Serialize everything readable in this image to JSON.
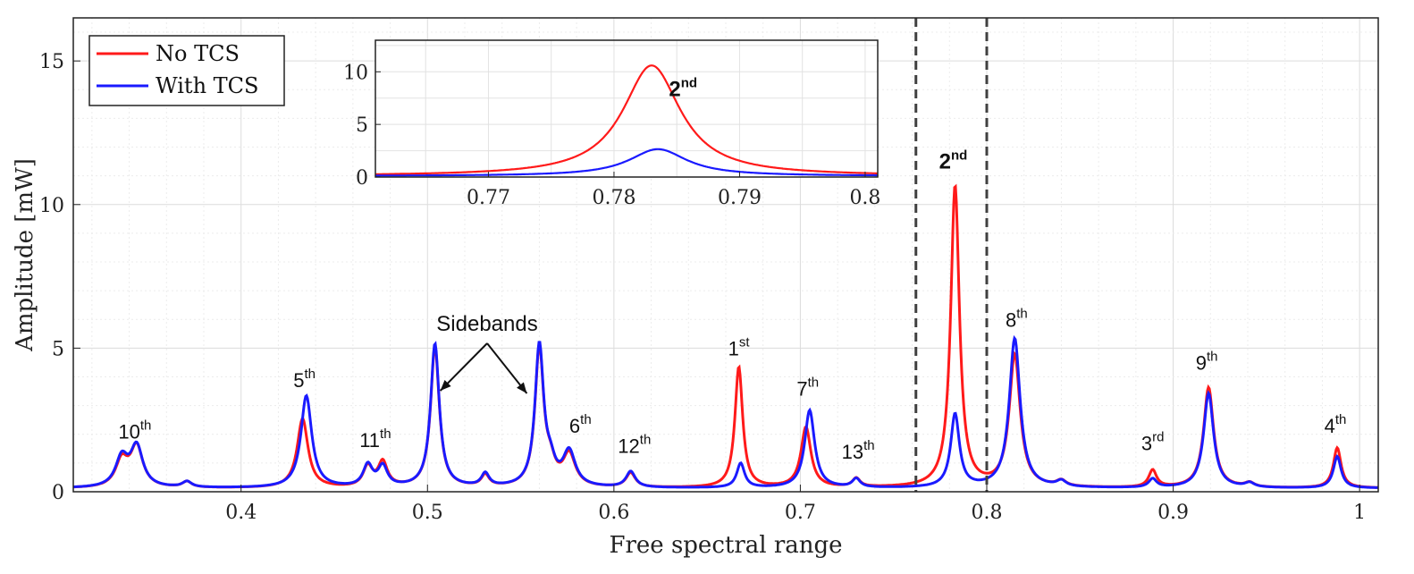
{
  "chart_data": {
    "type": "line",
    "xlabel": "Free spectral range",
    "ylabel": "Amplitude [mW]",
    "xlim": [
      0.31,
      1.01
    ],
    "ylim": [
      0,
      16.5
    ],
    "xticks": [
      0.4,
      0.5,
      0.6,
      0.7,
      0.8,
      0.9,
      1
    ],
    "xtick_labels": [
      "0.4",
      "0.5",
      "0.6",
      "0.7",
      "0.8",
      "0.9",
      "1"
    ],
    "yticks": [
      0,
      5,
      10,
      15
    ],
    "ytick_labels": [
      "0",
      "5",
      "10",
      "15"
    ],
    "grid": true,
    "legend_position": "top-left",
    "series": [
      {
        "name": "No TCS",
        "color": "#ff1a1a",
        "peaks": [
          {
            "x": 0.336,
            "amp": 0.9,
            "w": 0.004
          },
          {
            "x": 0.344,
            "amp": 1.4,
            "w": 0.004
          },
          {
            "x": 0.371,
            "amp": 0.2,
            "w": 0.003
          },
          {
            "x": 0.433,
            "amp": 2.4,
            "w": 0.0035
          },
          {
            "x": 0.468,
            "amp": 0.7,
            "w": 0.003
          },
          {
            "x": 0.476,
            "amp": 0.85,
            "w": 0.003
          },
          {
            "x": 0.504,
            "amp": 4.9,
            "w": 0.0028
          },
          {
            "x": 0.531,
            "amp": 0.4,
            "w": 0.0025
          },
          {
            "x": 0.56,
            "amp": 4.8,
            "w": 0.0028
          },
          {
            "x": 0.566,
            "amp": 0.6,
            "w": 0.003
          },
          {
            "x": 0.576,
            "amp": 1.1,
            "w": 0.004
          },
          {
            "x": 0.609,
            "amp": 0.5,
            "w": 0.003
          },
          {
            "x": 0.667,
            "amp": 4.2,
            "w": 0.0025
          },
          {
            "x": 0.703,
            "amp": 2.1,
            "w": 0.0032
          },
          {
            "x": 0.73,
            "amp": 0.3,
            "w": 0.0025
          },
          {
            "x": 0.783,
            "amp": 10.5,
            "w": 0.0028
          },
          {
            "x": 0.815,
            "amp": 4.6,
            "w": 0.0035
          },
          {
            "x": 0.84,
            "amp": 0.2,
            "w": 0.003
          },
          {
            "x": 0.889,
            "amp": 0.6,
            "w": 0.0025
          },
          {
            "x": 0.919,
            "amp": 3.5,
            "w": 0.0032
          },
          {
            "x": 0.941,
            "amp": 0.15,
            "w": 0.003
          },
          {
            "x": 0.988,
            "amp": 1.4,
            "w": 0.0025
          }
        ]
      },
      {
        "name": "With TCS",
        "color": "#1a1aff",
        "peaks": [
          {
            "x": 0.336,
            "amp": 1.0,
            "w": 0.004
          },
          {
            "x": 0.344,
            "amp": 1.4,
            "w": 0.004
          },
          {
            "x": 0.371,
            "amp": 0.2,
            "w": 0.003
          },
          {
            "x": 0.435,
            "amp": 3.2,
            "w": 0.0035
          },
          {
            "x": 0.468,
            "amp": 0.75,
            "w": 0.003
          },
          {
            "x": 0.476,
            "amp": 0.7,
            "w": 0.003
          },
          {
            "x": 0.504,
            "amp": 5.0,
            "w": 0.0028
          },
          {
            "x": 0.531,
            "amp": 0.45,
            "w": 0.0025
          },
          {
            "x": 0.56,
            "amp": 4.9,
            "w": 0.0028
          },
          {
            "x": 0.566,
            "amp": 0.6,
            "w": 0.003
          },
          {
            "x": 0.576,
            "amp": 1.2,
            "w": 0.004
          },
          {
            "x": 0.609,
            "amp": 0.55,
            "w": 0.003
          },
          {
            "x": 0.668,
            "amp": 0.85,
            "w": 0.0025
          },
          {
            "x": 0.705,
            "amp": 2.7,
            "w": 0.0032
          },
          {
            "x": 0.73,
            "amp": 0.3,
            "w": 0.0025
          },
          {
            "x": 0.783,
            "amp": 2.55,
            "w": 0.0028
          },
          {
            "x": 0.815,
            "amp": 5.2,
            "w": 0.0035
          },
          {
            "x": 0.84,
            "amp": 0.2,
            "w": 0.003
          },
          {
            "x": 0.889,
            "amp": 0.3,
            "w": 0.0025
          },
          {
            "x": 0.919,
            "amp": 3.3,
            "w": 0.0032
          },
          {
            "x": 0.941,
            "amp": 0.15,
            "w": 0.003
          },
          {
            "x": 0.988,
            "amp": 1.1,
            "w": 0.0025
          }
        ]
      }
    ],
    "dashed_lines_x": [
      0.762,
      0.8
    ],
    "peak_labels": [
      {
        "x": 0.343,
        "y": 1.6,
        "base": "10",
        "sup": "th",
        "bold": false
      },
      {
        "x": 0.434,
        "y": 3.4,
        "base": "5",
        "sup": "th",
        "bold": false
      },
      {
        "x": 0.472,
        "y": 1.3,
        "base": "11",
        "sup": "th",
        "bold": false
      },
      {
        "x": 0.582,
        "y": 1.8,
        "base": "6",
        "sup": "th",
        "bold": false
      },
      {
        "x": 0.611,
        "y": 1.1,
        "base": "12",
        "sup": "th",
        "bold": false
      },
      {
        "x": 0.667,
        "y": 4.5,
        "base": "1",
        "sup": "st",
        "bold": false
      },
      {
        "x": 0.704,
        "y": 3.1,
        "base": "7",
        "sup": "th",
        "bold": false
      },
      {
        "x": 0.731,
        "y": 0.9,
        "base": "13",
        "sup": "th",
        "bold": false
      },
      {
        "x": 0.782,
        "y": 11.0,
        "base": "2",
        "sup": "nd",
        "bold": true
      },
      {
        "x": 0.816,
        "y": 5.5,
        "base": "8",
        "sup": "th",
        "bold": false
      },
      {
        "x": 0.889,
        "y": 1.2,
        "base": "3",
        "sup": "rd",
        "bold": false
      },
      {
        "x": 0.918,
        "y": 4.0,
        "base": "9",
        "sup": "th",
        "bold": false
      },
      {
        "x": 0.987,
        "y": 1.8,
        "base": "4",
        "sup": "th",
        "bold": false
      }
    ],
    "annotation": {
      "text": "Sidebands",
      "arrow_targets_x": [
        0.504,
        0.56
      ]
    },
    "inset": {
      "xlim": [
        0.761,
        0.801
      ],
      "ylim": [
        0,
        13
      ],
      "xticks": [
        0.77,
        0.78,
        0.79,
        0.8
      ],
      "xtick_labels": [
        "0.77",
        "0.78",
        "0.79",
        "0.8"
      ],
      "yticks": [
        0,
        5,
        10
      ],
      "ytick_labels": [
        "0",
        "5",
        "10"
      ],
      "label": {
        "base": "2",
        "sup": "nd"
      },
      "series": [
        {
          "name": "No TCS",
          "peak_x": 0.783,
          "amp": 10.5,
          "w": 0.0028,
          "color": "#ff1a1a"
        },
        {
          "name": "With TCS",
          "peak_x": 0.7835,
          "amp": 2.55,
          "w": 0.0028,
          "color": "#1a1aff"
        }
      ]
    }
  }
}
